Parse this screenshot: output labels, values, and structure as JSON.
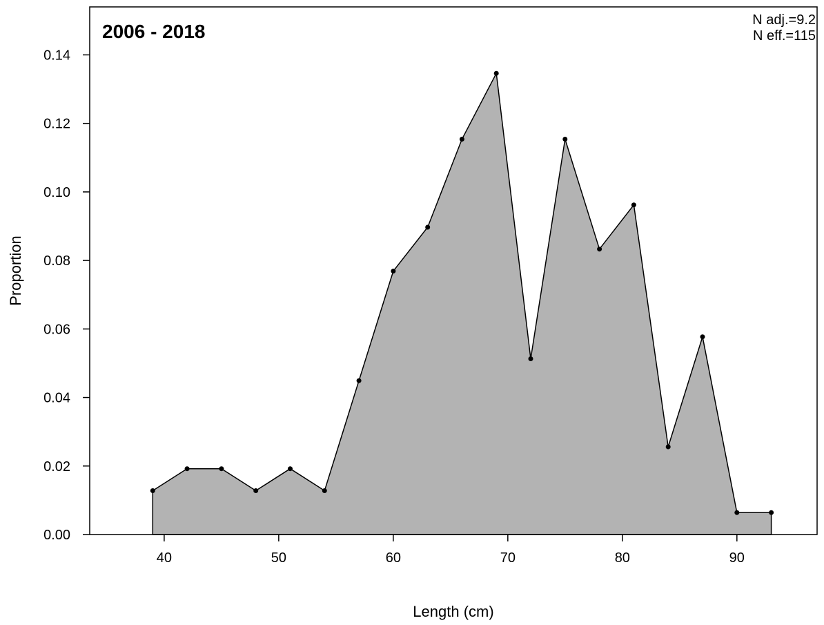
{
  "chart_data": {
    "type": "area",
    "title": "2006 - 2018",
    "annotations": [
      "N adj.=9.2",
      "N eff.=115"
    ],
    "annotation_placement": "top-right",
    "xlabel": "Length (cm)",
    "ylabel": "Proportion",
    "xlim": [
      33.5,
      97
    ],
    "ylim": [
      0,
      0.154
    ],
    "x_ticks": [
      40,
      50,
      60,
      70,
      80,
      90
    ],
    "x_tick_labels": [
      "40",
      "50",
      "60",
      "70",
      "80",
      "90"
    ],
    "y_ticks": [
      0.0,
      0.02,
      0.04,
      0.06,
      0.08,
      0.1,
      0.12,
      0.14
    ],
    "y_tick_labels": [
      "0.00",
      "0.02",
      "0.04",
      "0.06",
      "0.08",
      "0.10",
      "0.12",
      "0.14"
    ],
    "grid": false,
    "fill_color": "#b3b3b3",
    "line_color": "#000000",
    "x": [
      39,
      42,
      45,
      48,
      51,
      54,
      57,
      60,
      63,
      66,
      69,
      72,
      75,
      78,
      81,
      84,
      87,
      90,
      93
    ],
    "y": [
      0.0128,
      0.0192,
      0.0192,
      0.0128,
      0.0192,
      0.0128,
      0.0449,
      0.0769,
      0.0897,
      0.1154,
      0.1346,
      0.0513,
      0.1154,
      0.0833,
      0.0962,
      0.0256,
      0.0577,
      0.0064,
      0.0064
    ]
  }
}
